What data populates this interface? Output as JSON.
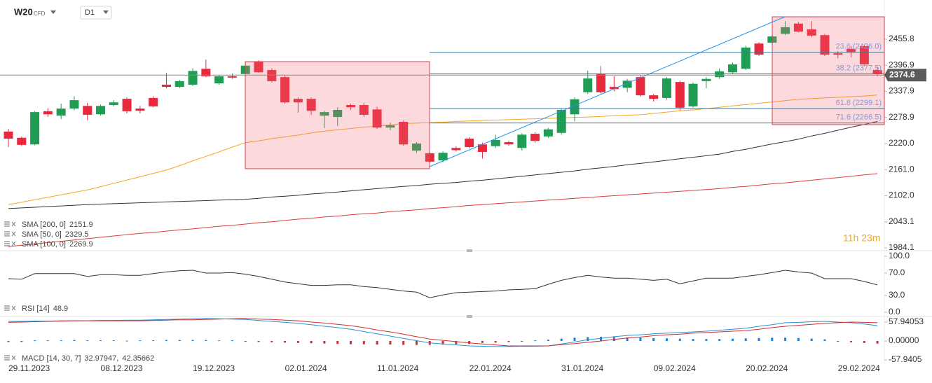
{
  "header": {
    "symbol": "W20",
    "instrument": "CFD",
    "interval": "D1"
  },
  "countdown": "11h 23m",
  "chart_data": [
    {
      "type": "candlestick",
      "categories": [
        "29.11.2023",
        null,
        null,
        null,
        null,
        null,
        null,
        "08.12.2023",
        null,
        null,
        null,
        null,
        null,
        null,
        "19.12.2023",
        null,
        null,
        null,
        null,
        null,
        null,
        "02.01.2024",
        null,
        null,
        null,
        null,
        null,
        null,
        "11.01.2024",
        null,
        null,
        null,
        null,
        null,
        null,
        "22.01.2024",
        null,
        null,
        null,
        null,
        null,
        null,
        "31.01.2024",
        null,
        null,
        null,
        null,
        null,
        null,
        "09.02.2024",
        null,
        null,
        null,
        null,
        null,
        null,
        "20.02.2024",
        null,
        null,
        null,
        null,
        null,
        null,
        "29.02.2024",
        null,
        null,
        null
      ],
      "open": [
        2247,
        2233,
        2218,
        2293,
        2283,
        2299,
        2305,
        2286,
        2307,
        2321,
        2299,
        2323,
        2353,
        2348,
        2353,
        2389,
        2356,
        2372,
        2377,
        2405,
        2386,
        2370,
        2321,
        2321,
        2283,
        2280,
        2307,
        2307,
        2297,
        2256,
        2269,
        2204,
        2198,
        2182,
        2210,
        2231,
        2218,
        2214,
        2223,
        2210,
        2242,
        2236,
        2244,
        2286,
        2336,
        2377,
        2348,
        2346,
        2370,
        2329,
        2323,
        2359,
        2304,
        2361,
        2370,
        2381,
        2389,
        2446,
        2448,
        2468,
        2491,
        2478,
        2465,
        2424,
        2434,
        2440,
        2386
      ],
      "high": [
        2253,
        2236,
        2293,
        2300,
        2310,
        2327,
        2312,
        2308,
        2318,
        2324,
        2305,
        2327,
        2380,
        2364,
        2390,
        2410,
        2375,
        2378,
        2404,
        2408,
        2390,
        2374,
        2324,
        2324,
        2294,
        2302,
        2310,
        2312,
        2303,
        2267,
        2272,
        2223,
        2200,
        2202,
        2214,
        2234,
        2222,
        2240,
        2226,
        2243,
        2245,
        2255,
        2300,
        2324,
        2385,
        2395,
        2372,
        2366,
        2374,
        2332,
        2370,
        2362,
        2358,
        2370,
        2390,
        2403,
        2441,
        2449,
        2466,
        2497,
        2495,
        2497,
        2468,
        2429,
        2440,
        2443,
        2392
      ],
      "low": [
        2212,
        2214,
        2216,
        2280,
        2275,
        2295,
        2273,
        2283,
        2304,
        2288,
        2288,
        2302,
        2345,
        2345,
        2350,
        2370,
        2353,
        2366,
        2375,
        2380,
        2358,
        2310,
        2290,
        2285,
        2255,
        2260,
        2296,
        2280,
        2253,
        2250,
        2215,
        2199,
        2176,
        2178,
        2202,
        2209,
        2186,
        2210,
        2215,
        2204,
        2222,
        2233,
        2240,
        2270,
        2332,
        2333,
        2338,
        2336,
        2326,
        2315,
        2319,
        2295,
        2301,
        2345,
        2366,
        2378,
        2386,
        2418,
        2444,
        2465,
        2471,
        2460,
        2418,
        2413,
        2415,
        2395,
        2372
      ],
      "close": [
        2231,
        2217,
        2291,
        2286,
        2299,
        2318,
        2285,
        2305,
        2313,
        2293,
        2294,
        2304,
        2348,
        2361,
        2384,
        2372,
        2372,
        2369,
        2396,
        2381,
        2361,
        2313,
        2313,
        2294,
        2291,
        2296,
        2302,
        2285,
        2256,
        2261,
        2218,
        2220,
        2179,
        2199,
        2205,
        2212,
        2201,
        2228,
        2218,
        2240,
        2226,
        2252,
        2296,
        2320,
        2367,
        2336,
        2343,
        2362,
        2329,
        2321,
        2367,
        2301,
        2355,
        2366,
        2383,
        2399,
        2437,
        2421,
        2462,
        2483,
        2473,
        2464,
        2421,
        2421,
        2427,
        2399,
        2378
      ],
      "up_color": "#1f9d55",
      "down_color": "#e8283c",
      "ylim": [
        1977.8,
        2528.6
      ],
      "yticks": [
        2455.8,
        2396.9,
        2337.9,
        2278.9,
        {
          "value": 2220,
          "label": "2220.0"
        },
        {
          "value": 2161,
          "label": "2161.0"
        },
        {
          "value": 2102,
          "label": "2102.0"
        },
        2043.1,
        1984.1
      ],
      "current_price": 2374.6,
      "fib_levels": [
        {
          "value": 2426.0,
          "label": "23.6 (2426.0)"
        },
        {
          "value": 2377.5,
          "label": "38.2 (2377.5)"
        },
        {
          "value": 2299.1,
          "label": "61.8 (2299.1)"
        },
        {
          "value": 2266.5,
          "label": "71.6 (2266.5)"
        }
      ],
      "series": [
        {
          "name": "SMA [200, 0]",
          "color": "#d9403a",
          "last": 2151.9,
          "values": [
            1987,
            1990,
            1993,
            1996,
            1999,
            2002,
            2005,
            2008,
            2011,
            2014,
            2017,
            2019,
            2022,
            2025,
            2027,
            2030,
            2033,
            2035,
            2038,
            2041,
            2043,
            2046,
            2049,
            2051,
            2054,
            2056,
            2059,
            2061,
            2063,
            2066,
            2068,
            2070,
            2073,
            2075,
            2077,
            2080,
            2082,
            2084,
            2086,
            2088,
            2090,
            2092,
            2094,
            2096,
            2098,
            2100,
            2102,
            2104,
            2106,
            2108,
            2110,
            2112,
            2114,
            2116,
            2118,
            2121,
            2123,
            2126,
            2129,
            2131,
            2134,
            2137,
            2140,
            2143,
            2146,
            2149,
            2151.9
          ]
        },
        {
          "name": "SMA [50, 0]",
          "color": "#f5a623",
          "last": 2329.5,
          "values": [
            2082,
            2087.5,
            2093,
            2098.5,
            2104,
            2109.5,
            2115,
            2122.5,
            2130,
            2137.5,
            2145,
            2152.5,
            2160,
            2170,
            2181,
            2191,
            2201,
            2212,
            2222,
            2226,
            2231,
            2235,
            2239,
            2244,
            2248,
            2251,
            2254,
            2257,
            2259,
            2262,
            2265,
            2266,
            2267,
            2268,
            2270,
            2271,
            2272,
            2273,
            2274,
            2275,
            2276,
            2277,
            2278,
            2279,
            2280,
            2281,
            2283,
            2284,
            2285,
            2288,
            2291,
            2294,
            2296,
            2299,
            2302,
            2305,
            2308,
            2311,
            2314,
            2317,
            2320,
            2321.5,
            2323,
            2324.5,
            2326,
            2327.5,
            2329.5
          ]
        },
        {
          "name": "SMA [100, 0]",
          "color": "#333333",
          "last": 2269.9,
          "values": [
            2073,
            2074.5,
            2076,
            2077.5,
            2079,
            2080.5,
            2082,
            2083,
            2084,
            2085,
            2086,
            2087,
            2088,
            2089,
            2090,
            2091,
            2092,
            2093,
            2094,
            2096,
            2099,
            2101,
            2103,
            2106,
            2108,
            2110.5,
            2113,
            2115.5,
            2118,
            2120.5,
            2123,
            2125,
            2128,
            2130,
            2132,
            2135,
            2137,
            2140,
            2143,
            2146,
            2149,
            2152,
            2155,
            2158,
            2162,
            2165,
            2168,
            2172,
            2175,
            2178.5,
            2182,
            2185.5,
            2189,
            2192.5,
            2196,
            2202,
            2207,
            2213,
            2219,
            2224,
            2230,
            2237,
            2243,
            2250,
            2257,
            2263,
            2269.9
          ]
        }
      ]
    },
    {
      "type": "line",
      "ylim": [
        -5,
        107.5
      ],
      "yticks": [
        {
          "value": 100,
          "label": "100.0"
        },
        {
          "value": 70,
          "label": "70.0"
        },
        {
          "value": 30,
          "label": "30.0"
        },
        {
          "value": 0,
          "label": "0.0"
        }
      ],
      "series": [
        {
          "name": "RSI [14]",
          "color": "#333333",
          "last": 48.9,
          "values": [
            60,
            59,
            69,
            69,
            69,
            69,
            64,
            67,
            67,
            66,
            66,
            69,
            72,
            74,
            75,
            70,
            70,
            71,
            68,
            64,
            59,
            54,
            51,
            48,
            48,
            49,
            49,
            46,
            44,
            41,
            38,
            36,
            26,
            31,
            35,
            36,
            37,
            38,
            40,
            41,
            42,
            50,
            57,
            62,
            66,
            63,
            61,
            61,
            59,
            57,
            59,
            51,
            56,
            61,
            61,
            61,
            64,
            67,
            71,
            75,
            72,
            70,
            60,
            60,
            60,
            55,
            48.9
          ]
        }
      ]
    },
    {
      "type": "macd",
      "name": "MACD [14, 30, 7]",
      "legend_values": [
        32.97947,
        42.35662
      ],
      "ylim": [
        -70.8,
        79.4
      ],
      "yticks": [
        57.94053,
        {
          "value": 0,
          "label": "0.00000"
        },
        -57.9405
      ],
      "macd": {
        "color": "#2a8fd6",
        "values": [
          60,
          60,
          61,
          61,
          62,
          62,
          62,
          63,
          63,
          64,
          64,
          65,
          66,
          67,
          68,
          69,
          68,
          67,
          66,
          63,
          60,
          57,
          54,
          50,
          45,
          41,
          36,
          29,
          22,
          15,
          8,
          1,
          -6,
          -9,
          -12,
          -15,
          -16,
          -17,
          -17,
          -16,
          -16,
          -15,
          -9,
          -3,
          4,
          8,
          13,
          17,
          19,
          22,
          24,
          26,
          28,
          30,
          33,
          36,
          39,
          45,
          50,
          56,
          57,
          59,
          60,
          58,
          56,
          52,
          47
        ]
      },
      "signal": {
        "color": "#d32f2f",
        "values": [
          57,
          58,
          59,
          60,
          61,
          62,
          62,
          62,
          62,
          62,
          62,
          63,
          64,
          65,
          65,
          66,
          67,
          68,
          69,
          67,
          66,
          64,
          62,
          58,
          55,
          51,
          47,
          41,
          34,
          28,
          21,
          13,
          6,
          2,
          -2,
          -6,
          -9,
          -12,
          -15,
          -15,
          -15,
          -15,
          -11,
          -8,
          -4,
          0,
          5,
          9,
          12,
          16,
          19,
          21,
          24,
          26,
          28,
          30,
          32,
          36,
          41,
          45,
          48,
          51,
          54,
          56,
          58,
          57,
          56
        ]
      },
      "histogram": {
        "up_color": "#1e7fd0",
        "down_color": "#d32f2f",
        "values": [
          -3,
          -3,
          2,
          2,
          2,
          3,
          2,
          2,
          2,
          1,
          2,
          2,
          3,
          3,
          3,
          3,
          2,
          2,
          -2,
          -3,
          -4,
          -5,
          -6,
          -7,
          -8,
          -9,
          -10,
          -10,
          -11,
          -11,
          -12,
          -12,
          -12,
          -11,
          -10,
          -9,
          -6,
          -5,
          -3,
          -2,
          2,
          4,
          7,
          10,
          12,
          13,
          12,
          11,
          10,
          9,
          8,
          7,
          6,
          6,
          6,
          7,
          8,
          9,
          10,
          10,
          9,
          7,
          5,
          -2,
          -4,
          -6,
          -8
        ]
      }
    }
  ]
}
